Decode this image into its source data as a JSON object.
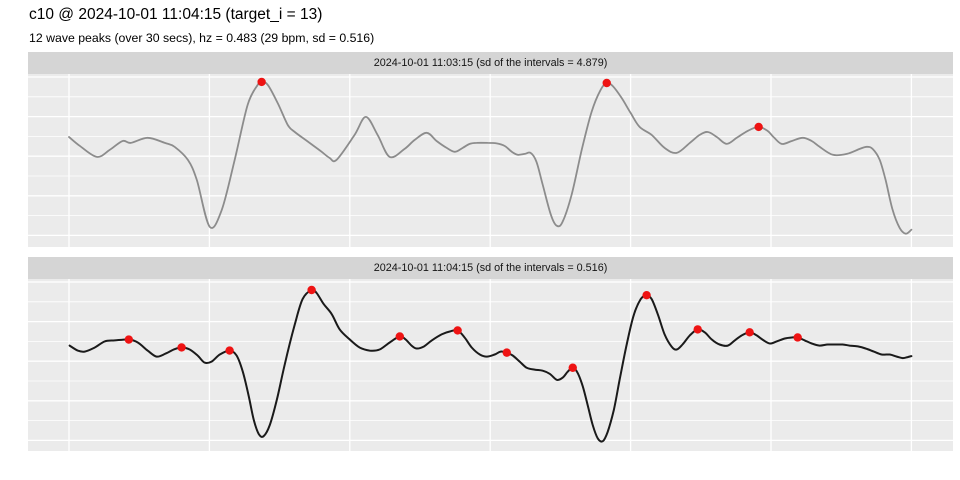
{
  "header": {
    "title": "c10 @ 2024-10-01 11:04:15 (target_i = 13)",
    "subtitle": "12 wave peaks (over 30 secs), hz = 0.483 (29 bpm, sd = 0.516)"
  },
  "colors": {
    "page_bg": "#ffffff",
    "panel_bg": "#ebebeb",
    "strip_bg": "#d5d5d5",
    "gridline": "#ffffff",
    "peak_marker": "#ee1313",
    "series_top": "#8c8c8c",
    "series_bottom": "#1a1a1a"
  },
  "chart_data": {
    "type": "line",
    "title": "c10 @ 2024-10-01 11:04:15 (target_i = 13)",
    "subtitle": "12 wave peaks (over 30 secs), hz = 0.483 (29 bpm, sd = 0.516)",
    "x_unit": "seconds",
    "x_range": [
      0,
      30
    ],
    "x_gridline_step_sec": 5,
    "y_unit": "normalized amplitude (no axis ticks or labels shown)",
    "y_range": [
      0,
      1
    ],
    "grid": "major white gridlines on gray panel, no axis text, facet strips on top",
    "legend": "none",
    "facets": [
      {
        "strip_label": "2024-10-01 11:03:15 (sd of the intervals = 4.879)",
        "line_color": "#8c8c8c",
        "line_width": 1.8,
        "peaks": [
          [
            6.86,
            0.954
          ],
          [
            19.15,
            0.948
          ],
          [
            24.56,
            0.694
          ]
        ],
        "points": [
          [
            0,
            0.636
          ],
          [
            0.38,
            0.585
          ],
          [
            0.99,
            0.521
          ],
          [
            1.45,
            0.561
          ],
          [
            1.91,
            0.613
          ],
          [
            2.2,
            0.602
          ],
          [
            2.8,
            0.631
          ],
          [
            3.41,
            0.602
          ],
          [
            3.76,
            0.579
          ],
          [
            4.23,
            0.504
          ],
          [
            4.55,
            0.388
          ],
          [
            5.01,
            0.117
          ],
          [
            5.44,
            0.215
          ],
          [
            5.9,
            0.504
          ],
          [
            6.36,
            0.821
          ],
          [
            6.72,
            0.937
          ],
          [
            6.86,
            0.954
          ],
          [
            7.08,
            0.937
          ],
          [
            7.43,
            0.833
          ],
          [
            7.79,
            0.706
          ],
          [
            8.04,
            0.665
          ],
          [
            8.57,
            0.602
          ],
          [
            9,
            0.55
          ],
          [
            9.28,
            0.515
          ],
          [
            9.53,
            0.504
          ],
          [
            10.17,
            0.648
          ],
          [
            10.57,
            0.752
          ],
          [
            10.99,
            0.648
          ],
          [
            11.42,
            0.521
          ],
          [
            11.95,
            0.567
          ],
          [
            12.31,
            0.619
          ],
          [
            12.74,
            0.66
          ],
          [
            13.09,
            0.613
          ],
          [
            13.45,
            0.573
          ],
          [
            13.74,
            0.55
          ],
          [
            14.02,
            0.573
          ],
          [
            14.27,
            0.596
          ],
          [
            14.52,
            0.602
          ],
          [
            14.91,
            0.602
          ],
          [
            15.23,
            0.599
          ],
          [
            15.52,
            0.584
          ],
          [
            15.77,
            0.55
          ],
          [
            15.98,
            0.533
          ],
          [
            16.23,
            0.538
          ],
          [
            16.44,
            0.544
          ],
          [
            16.65,
            0.492
          ],
          [
            16.87,
            0.36
          ],
          [
            17.16,
            0.186
          ],
          [
            17.37,
            0.123
          ],
          [
            17.58,
            0.146
          ],
          [
            17.9,
            0.302
          ],
          [
            18.26,
            0.561
          ],
          [
            18.61,
            0.781
          ],
          [
            18.93,
            0.908
          ],
          [
            19.15,
            0.948
          ],
          [
            19.36,
            0.931
          ],
          [
            19.68,
            0.862
          ],
          [
            20,
            0.775
          ],
          [
            20.32,
            0.694
          ],
          [
            20.75,
            0.648
          ],
          [
            21.21,
            0.573
          ],
          [
            21.64,
            0.544
          ],
          [
            22.11,
            0.602
          ],
          [
            22.46,
            0.648
          ],
          [
            22.75,
            0.665
          ],
          [
            23.07,
            0.636
          ],
          [
            23.42,
            0.596
          ],
          [
            23.78,
            0.631
          ],
          [
            24.17,
            0.671
          ],
          [
            24.56,
            0.694
          ],
          [
            24.88,
            0.671
          ],
          [
            25.09,
            0.636
          ],
          [
            25.38,
            0.596
          ],
          [
            25.74,
            0.613
          ],
          [
            26.13,
            0.631
          ],
          [
            26.45,
            0.613
          ],
          [
            26.73,
            0.579
          ],
          [
            27.2,
            0.533
          ],
          [
            27.7,
            0.538
          ],
          [
            28.16,
            0.567
          ],
          [
            28.41,
            0.579
          ],
          [
            28.62,
            0.567
          ],
          [
            28.87,
            0.504
          ],
          [
            29.08,
            0.388
          ],
          [
            29.33,
            0.215
          ],
          [
            29.58,
            0.111
          ],
          [
            29.8,
            0.077
          ],
          [
            30,
            0.1
          ]
        ]
      },
      {
        "strip_label": "2024-10-01 11:04:15 (sd of the intervals = 0.516)",
        "line_color": "#1a1a1a",
        "line_width": 2,
        "peaks": [
          [
            2.13,
            0.648
          ],
          [
            4.01,
            0.602
          ],
          [
            5.72,
            0.584
          ],
          [
            8.64,
            0.936
          ],
          [
            11.78,
            0.666
          ],
          [
            13.84,
            0.701
          ],
          [
            15.59,
            0.572
          ],
          [
            17.94,
            0.484
          ],
          [
            20.57,
            0.906
          ],
          [
            22.39,
            0.707
          ],
          [
            24.24,
            0.69
          ],
          [
            25.95,
            0.66
          ]
        ],
        "points": [
          [
            0.02,
            0.613
          ],
          [
            0.31,
            0.584
          ],
          [
            0.56,
            0.578
          ],
          [
            0.92,
            0.602
          ],
          [
            1.27,
            0.637
          ],
          [
            1.63,
            0.643
          ],
          [
            2.13,
            0.648
          ],
          [
            2.45,
            0.631
          ],
          [
            2.8,
            0.584
          ],
          [
            3.12,
            0.549
          ],
          [
            3.44,
            0.566
          ],
          [
            3.73,
            0.59
          ],
          [
            4.01,
            0.602
          ],
          [
            4.3,
            0.59
          ],
          [
            4.58,
            0.555
          ],
          [
            4.83,
            0.514
          ],
          [
            5.08,
            0.52
          ],
          [
            5.37,
            0.561
          ],
          [
            5.72,
            0.584
          ],
          [
            5.97,
            0.555
          ],
          [
            6.19,
            0.461
          ],
          [
            6.4,
            0.32
          ],
          [
            6.58,
            0.18
          ],
          [
            6.76,
            0.098
          ],
          [
            6.93,
            0.086
          ],
          [
            7.15,
            0.151
          ],
          [
            7.4,
            0.297
          ],
          [
            7.68,
            0.502
          ],
          [
            8.04,
            0.736
          ],
          [
            8.32,
            0.883
          ],
          [
            8.64,
            0.936
          ],
          [
            8.82,
            0.918
          ],
          [
            9.07,
            0.854
          ],
          [
            9.36,
            0.795
          ],
          [
            9.64,
            0.707
          ],
          [
            10,
            0.648
          ],
          [
            10.35,
            0.602
          ],
          [
            10.71,
            0.584
          ],
          [
            11.06,
            0.59
          ],
          [
            11.42,
            0.631
          ],
          [
            11.78,
            0.666
          ],
          [
            11.99,
            0.648
          ],
          [
            12.2,
            0.613
          ],
          [
            12.38,
            0.596
          ],
          [
            12.63,
            0.607
          ],
          [
            12.92,
            0.643
          ],
          [
            13.27,
            0.678
          ],
          [
            13.56,
            0.695
          ],
          [
            13.84,
            0.701
          ],
          [
            14.09,
            0.66
          ],
          [
            14.34,
            0.602
          ],
          [
            14.63,
            0.561
          ],
          [
            14.88,
            0.549
          ],
          [
            15.16,
            0.561
          ],
          [
            15.37,
            0.578
          ],
          [
            15.59,
            0.572
          ],
          [
            15.8,
            0.555
          ],
          [
            16.05,
            0.52
          ],
          [
            16.3,
            0.484
          ],
          [
            16.58,
            0.473
          ],
          [
            16.87,
            0.467
          ],
          [
            17.12,
            0.449
          ],
          [
            17.37,
            0.414
          ],
          [
            17.58,
            0.426
          ],
          [
            17.76,
            0.461
          ],
          [
            17.94,
            0.484
          ],
          [
            18.11,
            0.455
          ],
          [
            18.29,
            0.379
          ],
          [
            18.47,
            0.268
          ],
          [
            18.65,
            0.151
          ],
          [
            18.83,
            0.074
          ],
          [
            19.01,
            0.057
          ],
          [
            19.18,
            0.11
          ],
          [
            19.4,
            0.238
          ],
          [
            19.61,
            0.414
          ],
          [
            19.86,
            0.619
          ],
          [
            20.11,
            0.789
          ],
          [
            20.36,
            0.883
          ],
          [
            20.57,
            0.906
          ],
          [
            20.75,
            0.883
          ],
          [
            20.97,
            0.795
          ],
          [
            21.21,
            0.678
          ],
          [
            21.46,
            0.607
          ],
          [
            21.64,
            0.59
          ],
          [
            21.85,
            0.619
          ],
          [
            22.11,
            0.672
          ],
          [
            22.39,
            0.707
          ],
          [
            22.64,
            0.69
          ],
          [
            22.89,
            0.648
          ],
          [
            23.17,
            0.619
          ],
          [
            23.46,
            0.613
          ],
          [
            23.71,
            0.643
          ],
          [
            23.96,
            0.672
          ],
          [
            24.24,
            0.69
          ],
          [
            24.49,
            0.672
          ],
          [
            24.74,
            0.643
          ],
          [
            24.96,
            0.625
          ],
          [
            25.2,
            0.637
          ],
          [
            25.49,
            0.654
          ],
          [
            25.74,
            0.66
          ],
          [
            25.95,
            0.66
          ],
          [
            26.2,
            0.643
          ],
          [
            26.45,
            0.625
          ],
          [
            26.73,
            0.613
          ],
          [
            27.02,
            0.619
          ],
          [
            27.3,
            0.619
          ],
          [
            27.55,
            0.619
          ],
          [
            27.8,
            0.613
          ],
          [
            28.09,
            0.608
          ],
          [
            28.37,
            0.596
          ],
          [
            28.66,
            0.578
          ],
          [
            28.94,
            0.561
          ],
          [
            29.23,
            0.561
          ],
          [
            29.48,
            0.549
          ],
          [
            29.69,
            0.54
          ],
          [
            29.87,
            0.546
          ],
          [
            30,
            0.552
          ]
        ]
      }
    ]
  }
}
